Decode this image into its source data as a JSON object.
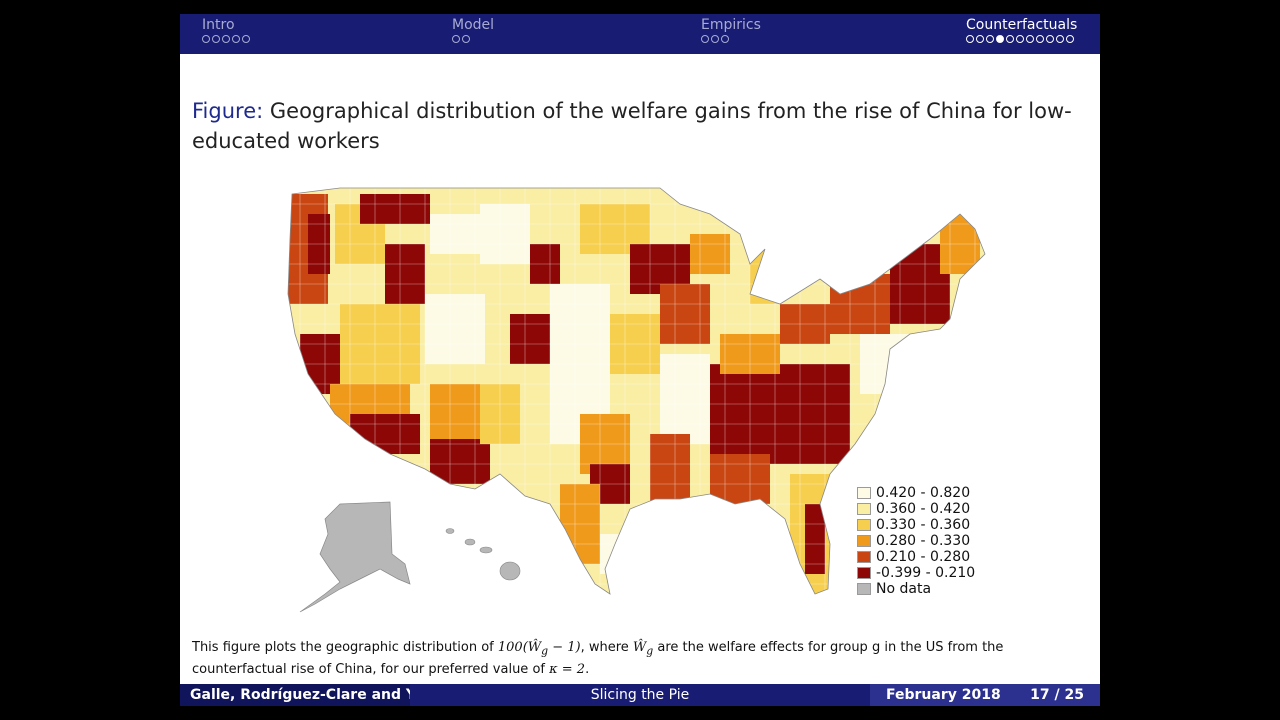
{
  "nav": [
    {
      "label": "Intro",
      "dots": 5,
      "filled": [],
      "active": false
    },
    {
      "label": "Model",
      "dots": 2,
      "filled": [],
      "active": false
    },
    {
      "label": "Empirics",
      "dots": 3,
      "filled": [],
      "active": false
    },
    {
      "label": "Counterfactuals",
      "dots": 11,
      "filled": [
        3
      ],
      "active": true
    }
  ],
  "title": {
    "prefix": "Figure:",
    "text": "Geographical distribution of the welfare gains from the rise of China for low-educated workers"
  },
  "map": {
    "colors": {
      "c1": "#fdfbe6",
      "c2": "#faeea5",
      "c3": "#f6cf4f",
      "c4": "#f09a1c",
      "c5": "#c94612",
      "c6": "#8e0707",
      "nodata": "#b7b7b7"
    }
  },
  "legend": [
    {
      "label": "0.420 - 0.820",
      "color": "#fdfbe6"
    },
    {
      "label": "0.360 - 0.420",
      "color": "#faeea5"
    },
    {
      "label": "0.330 - 0.360",
      "color": "#f6cf4f"
    },
    {
      "label": "0.280 - 0.330",
      "color": "#f09a1c"
    },
    {
      "label": "0.210 - 0.280",
      "color": "#c94612"
    },
    {
      "label": "-0.399 - 0.210",
      "color": "#8e0707"
    },
    {
      "label": "No data",
      "color": "#b7b7b7"
    }
  ],
  "caption": {
    "p1": "This figure plots the geographic distribution of ",
    "m1": "100(Ŵ",
    "m1sub": "g",
    "m1end": " − 1)",
    "p2": ", where ",
    "m2": "Ŵ",
    "m2sub": "g",
    "p3": " are the welfare effects for group g in the US from the counterfactual rise of China, for our preferred value of ",
    "m3": "κ = 2",
    "p4": "."
  },
  "footer": {
    "authors": "Galle, Rodríguez-Clare and Yi",
    "talk": "Slicing the Pie",
    "date": "February 2018",
    "page": "17 / 25"
  }
}
